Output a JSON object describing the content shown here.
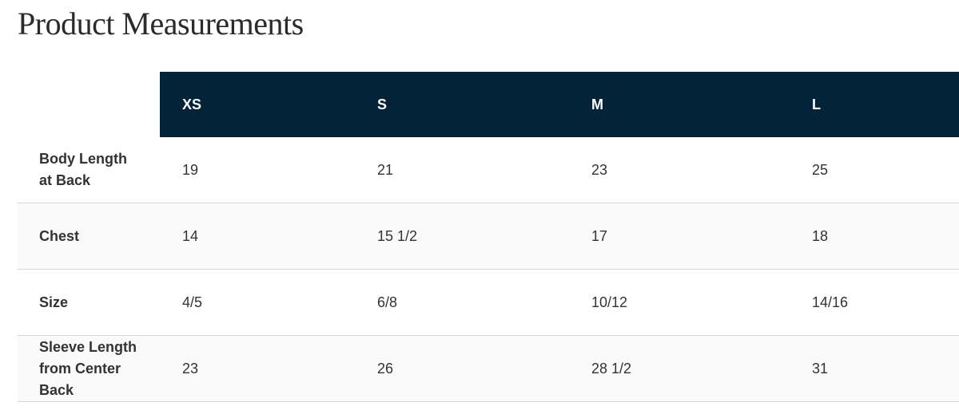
{
  "header": {
    "title": "Product Measurements"
  },
  "table": {
    "columns": [
      "XS",
      "S",
      "M",
      "L"
    ],
    "rows": [
      {
        "label": "Body Length at Back",
        "cells": [
          "19",
          "21",
          "23",
          "25"
        ]
      },
      {
        "label": "Chest",
        "cells": [
          "14",
          "15 1/2",
          "17",
          "18"
        ]
      },
      {
        "label": "Size",
        "cells": [
          "4/5",
          "6/8",
          "10/12",
          "14/16"
        ]
      },
      {
        "label": "Sleeve Length from Center Back",
        "cells": [
          "23",
          "26",
          "28 1/2",
          "31"
        ]
      }
    ]
  }
}
